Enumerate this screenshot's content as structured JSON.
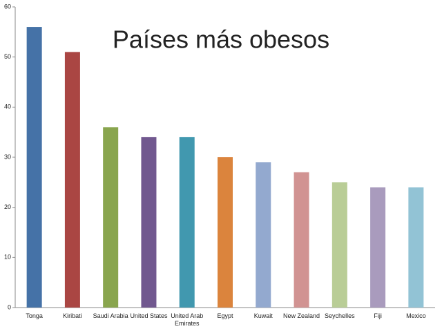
{
  "chart_data": {
    "type": "bar",
    "title": "Países más obesos",
    "categories": [
      "Tonga",
      "Kiribati",
      "Saudi Arabia",
      "United States",
      "United Arab Emirates",
      "Egypt",
      "Kuwait",
      "New Zealand",
      "Seychelles",
      "Fiji",
      "Mexico"
    ],
    "values": [
      56,
      51,
      36,
      34,
      34,
      30,
      29,
      27,
      25,
      24,
      24
    ],
    "colors": [
      "#4572a7",
      "#aa4643",
      "#89a54e",
      "#71588f",
      "#4198af",
      "#db843d",
      "#93a9cf",
      "#d19392",
      "#b9cd96",
      "#a99bbd",
      "#92c3d5"
    ],
    "ylim": [
      0,
      60
    ],
    "yticks": [
      0,
      10,
      20,
      30,
      40,
      50,
      60
    ],
    "grid": false
  }
}
